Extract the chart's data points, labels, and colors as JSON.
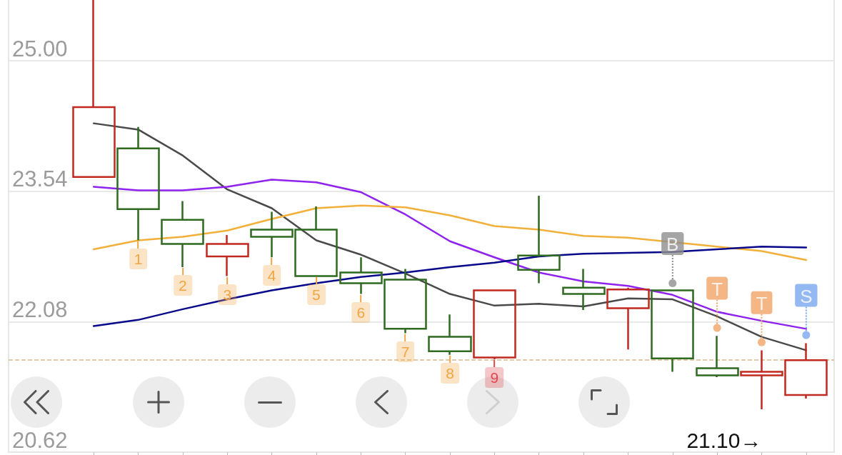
{
  "chart_data": {
    "type": "candlestick",
    "categories": [
      null,
      null,
      null,
      null,
      null,
      null,
      null,
      null,
      null,
      null,
      null,
      null,
      null,
      null,
      null,
      null,
      null
    ],
    "ohlc": [
      [
        23.7,
        25.68,
        23.7,
        24.48
      ],
      [
        24.02,
        24.26,
        22.99,
        23.34
      ],
      [
        23.22,
        23.43,
        22.69,
        22.95
      ],
      [
        22.81,
        23.05,
        22.59,
        22.95
      ],
      [
        23.11,
        23.31,
        22.8,
        23.03
      ],
      [
        23.11,
        23.37,
        22.59,
        22.59
      ],
      [
        22.63,
        22.8,
        22.39,
        22.51
      ],
      [
        22.55,
        22.67,
        21.95,
        22.0
      ],
      [
        21.91,
        22.16,
        21.71,
        21.75
      ],
      [
        21.68,
        22.44,
        21.66,
        22.43
      ],
      [
        22.82,
        23.49,
        22.51,
        22.66
      ],
      [
        22.46,
        22.67,
        22.21,
        22.39
      ],
      [
        22.23,
        22.46,
        21.77,
        22.44
      ],
      [
        22.43,
        22.43,
        21.52,
        21.67
      ],
      [
        21.56,
        21.92,
        21.46,
        21.48
      ],
      [
        21.48,
        21.76,
        21.1,
        21.52
      ],
      [
        21.26,
        21.84,
        21.22,
        21.65
      ]
    ],
    "colors": [
      "#c1281f",
      "#2e6a1f",
      "#2e6a1f",
      "#c1281f",
      "#2e6a1f",
      "#2e6a1f",
      "#2e6a1f",
      "#2e6a1f",
      "#2e6a1f",
      "#c1281f",
      "#2e6a1f",
      "#2e6a1f",
      "#c1281f",
      "#2e6a1f",
      "#2e6a1f",
      "#c1281f",
      "#c1281f"
    ],
    "series": [
      {
        "type": "line",
        "color": "#4a4a4a",
        "values": [
          24.3,
          24.23,
          23.94,
          23.56,
          23.35,
          22.99,
          22.83,
          22.62,
          22.39,
          22.26,
          22.28,
          22.25,
          22.34,
          22.33,
          22.14,
          21.91,
          21.76
        ]
      },
      {
        "type": "line",
        "color": "#8f22ee",
        "values": [
          23.59,
          23.55,
          23.55,
          23.59,
          23.67,
          23.64,
          23.53,
          23.28,
          22.98,
          22.8,
          22.63,
          22.53,
          22.48,
          22.38,
          22.19,
          22.09,
          22.0
        ]
      },
      {
        "type": "line",
        "color": "#f2b03a",
        "values": [
          22.89,
          22.99,
          23.03,
          23.1,
          23.23,
          23.35,
          23.38,
          23.36,
          23.27,
          23.15,
          23.11,
          23.04,
          23.02,
          22.97,
          22.92,
          22.87,
          22.77
        ]
      },
      {
        "type": "line",
        "color": "#08088a",
        "values": [
          22.03,
          22.1,
          22.22,
          22.33,
          22.43,
          22.51,
          22.58,
          22.63,
          22.69,
          22.74,
          22.81,
          22.84,
          22.85,
          22.86,
          22.89,
          22.92,
          22.91
        ]
      },
      {
        "type": "scatter",
        "marker": "circle",
        "values": [
          null,
          null,
          null,
          null,
          null,
          null,
          null,
          null,
          null,
          null,
          null,
          null,
          null,
          22.51,
          22.01,
          21.85,
          21.93
        ],
        "value_labels": [
          null,
          null,
          null,
          null,
          null,
          null,
          null,
          null,
          null,
          null,
          null,
          null,
          null,
          "B",
          "T",
          "T",
          "S"
        ],
        "colors": [
          null,
          null,
          null,
          null,
          null,
          null,
          null,
          null,
          null,
          null,
          null,
          null,
          null,
          "#8e8e8e",
          "#f2a467",
          "#f2a467",
          "#79a6ee"
        ]
      }
    ],
    "ylim": [
      20.62,
      25.68
    ],
    "yticks": [
      20.62,
      22.08,
      23.54,
      {
        "value": 25,
        "label": "25.00"
      }
    ],
    "tick_labels": "y",
    "grid": "y",
    "marker": "none",
    "ref_lines": [
      {
        "axis": "y",
        "value": 21.65,
        "color": "#d9b88f",
        "line_style": "dashed"
      }
    ],
    "annotations": [
      "1",
      "2",
      "3",
      "4",
      "5",
      "6",
      "7",
      "8",
      "9",
      "21.10→"
    ]
  }
}
